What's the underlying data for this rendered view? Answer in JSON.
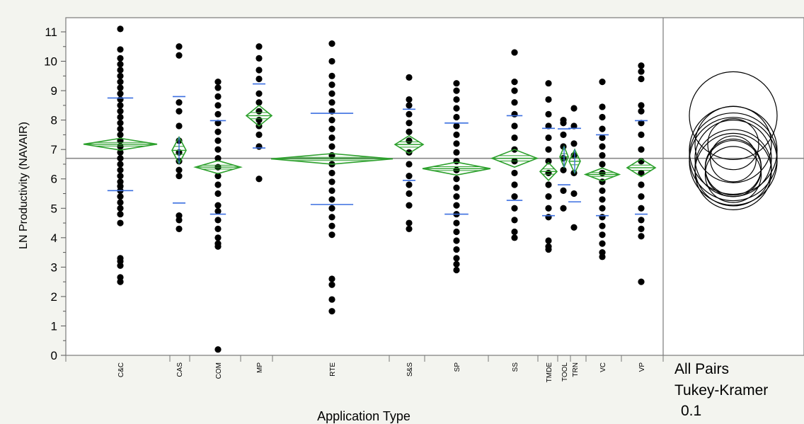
{
  "chart_data": {
    "type": "scatter",
    "subtype": "oneway-means-diamonds",
    "xlabel": "Application Type",
    "ylabel": "LN Productivity (NAVAIR)",
    "ylim": [
      0,
      11.4
    ],
    "yticks": [
      0,
      1,
      2,
      3,
      4,
      5,
      6,
      7,
      8,
      9,
      10,
      11
    ],
    "grand_mean": 6.7,
    "comparison": {
      "line1": "All Pairs",
      "line2": "Tukey-Kramer",
      "line3": "0.1"
    },
    "colors": {
      "points": "#000000",
      "diamond": "#2ca02c",
      "sd_ticks": "#3b6fe0",
      "grand_mean_line": "#888888"
    },
    "groups": [
      {
        "name": "C&C",
        "mean": 7.18,
        "ci": 0.2,
        "lo_sd": 5.6,
        "hi_sd": 8.75,
        "points": [
          2.5,
          2.65,
          3.05,
          3.2,
          3.3,
          4.5,
          4.8,
          5.0,
          5.2,
          5.4,
          5.6,
          5.75,
          5.9,
          6.1,
          6.3,
          6.5,
          6.7,
          6.9,
          7.1,
          7.3,
          7.5,
          7.7,
          7.9,
          8.1,
          8.3,
          8.5,
          8.7,
          8.9,
          9.1,
          9.3,
          9.5,
          9.7,
          9.9,
          10.1,
          10.4,
          11.1
        ]
      },
      {
        "name": "CAS",
        "mean": 6.97,
        "ci": 0.45,
        "lo_sd": 5.18,
        "hi_sd": 8.8,
        "points": [
          4.3,
          4.6,
          4.75,
          6.1,
          6.3,
          6.6,
          6.9,
          7.3,
          7.8,
          8.3,
          8.6,
          10.2,
          10.5
        ]
      },
      {
        "name": "COM",
        "mean": 6.4,
        "ci": 0.22,
        "lo_sd": 4.8,
        "hi_sd": 7.98,
        "points": [
          0.2,
          3.7,
          3.8,
          4.0,
          4.3,
          4.6,
          4.9,
          5.1,
          5.5,
          5.8,
          6.1,
          6.4,
          6.7,
          7.0,
          7.3,
          7.6,
          7.9,
          8.2,
          8.5,
          8.8,
          9.1,
          9.3
        ]
      },
      {
        "name": "MP",
        "mean": 8.15,
        "ci": 0.35,
        "lo_sd": 7.05,
        "hi_sd": 9.23,
        "points": [
          6.0,
          7.1,
          7.5,
          7.8,
          8.0,
          8.3,
          8.6,
          8.9,
          9.4,
          9.7,
          10.1,
          10.5
        ]
      },
      {
        "name": "RTE",
        "mean": 6.68,
        "ci": 0.18,
        "lo_sd": 5.13,
        "hi_sd": 8.23,
        "points": [
          1.5,
          1.9,
          2.4,
          2.6,
          4.1,
          4.4,
          4.7,
          5.0,
          5.3,
          5.6,
          5.9,
          6.2,
          6.5,
          6.8,
          7.1,
          7.4,
          7.7,
          8.0,
          8.3,
          8.6,
          8.9,
          9.2,
          9.5,
          10.0,
          10.6
        ]
      },
      {
        "name": "S&S",
        "mean": 7.17,
        "ci": 0.3,
        "lo_sd": 5.95,
        "hi_sd": 8.37,
        "points": [
          4.3,
          4.5,
          5.1,
          5.5,
          5.8,
          6.1,
          6.5,
          6.9,
          7.3,
          7.6,
          7.9,
          8.2,
          8.5,
          8.7,
          9.45
        ]
      },
      {
        "name": "SP",
        "mean": 6.35,
        "ci": 0.22,
        "lo_sd": 4.8,
        "hi_sd": 7.9,
        "points": [
          2.9,
          3.1,
          3.3,
          3.6,
          3.9,
          4.2,
          4.5,
          4.8,
          5.1,
          5.4,
          5.7,
          6.0,
          6.3,
          6.6,
          6.9,
          7.2,
          7.5,
          7.8,
          8.1,
          8.4,
          8.7,
          9.0,
          9.25
        ]
      },
      {
        "name": "SS",
        "mean": 6.7,
        "ci": 0.3,
        "lo_sd": 5.27,
        "hi_sd": 8.15,
        "points": [
          4.0,
          4.2,
          4.6,
          5.0,
          5.4,
          5.8,
          6.2,
          6.6,
          7.0,
          7.4,
          7.8,
          8.2,
          8.6,
          9.0,
          9.3,
          10.3
        ]
      },
      {
        "name": "TMDE",
        "mean": 6.25,
        "ci": 0.3,
        "lo_sd": 4.75,
        "hi_sd": 7.72,
        "points": [
          3.6,
          3.7,
          3.9,
          4.7,
          5.0,
          5.4,
          5.8,
          6.2,
          6.6,
          7.0,
          7.4,
          7.8,
          8.2,
          8.7,
          9.25
        ]
      },
      {
        "name": "TOOL",
        "mean": 6.75,
        "ci": 0.35,
        "lo_sd": 5.8,
        "hi_sd": 7.7,
        "points": [
          5.0,
          5.6,
          6.3,
          6.7,
          7.1,
          7.5,
          7.9,
          8.0
        ]
      },
      {
        "name": "TRN",
        "mean": 6.6,
        "ci": 0.4,
        "lo_sd": 5.22,
        "hi_sd": 7.72,
        "points": [
          4.35,
          5.5,
          6.2,
          6.8,
          7.2,
          7.8,
          8.4
        ]
      },
      {
        "name": "VC",
        "mean": 6.15,
        "ci": 0.22,
        "lo_sd": 4.75,
        "hi_sd": 7.5,
        "points": [
          3.35,
          3.5,
          3.8,
          4.1,
          4.4,
          4.7,
          5.0,
          5.3,
          5.6,
          5.9,
          6.2,
          6.5,
          6.8,
          7.1,
          7.4,
          7.7,
          8.1,
          8.45,
          9.3
        ]
      },
      {
        "name": "VP",
        "mean": 6.38,
        "ci": 0.3,
        "lo_sd": 4.8,
        "hi_sd": 7.98,
        "points": [
          2.5,
          4.05,
          4.3,
          4.6,
          5.0,
          5.4,
          5.8,
          6.2,
          6.6,
          7.0,
          7.5,
          7.9,
          8.3,
          8.5,
          9.4,
          9.65,
          9.85
        ]
      }
    ]
  }
}
